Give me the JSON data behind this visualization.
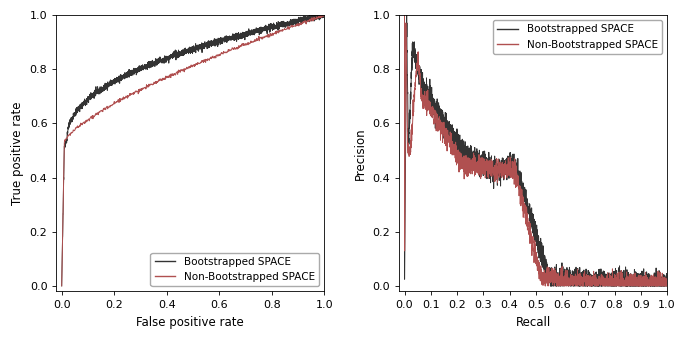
{
  "roc_boot_color": "#333333",
  "roc_nonboot_color": "#b05050",
  "prc_boot_color": "#333333",
  "prc_nonboot_color": "#b05050",
  "legend_label_boot": "Bootstrapped SPACE",
  "legend_label_nonboot": "Non-Bootstrapped SPACE",
  "roc_xlabel": "False positive rate",
  "roc_ylabel": "True positive rate",
  "prc_xlabel": "Recall",
  "prc_ylabel": "Precision",
  "line_width": 0.7,
  "bg_color": "#ffffff",
  "font_size": 8.5
}
